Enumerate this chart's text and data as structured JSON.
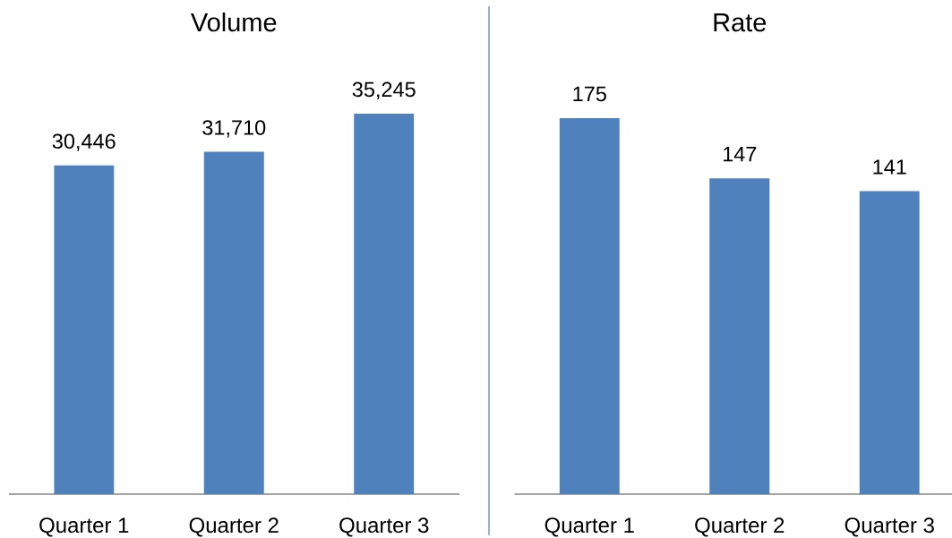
{
  "chart_data": [
    {
      "type": "bar",
      "title": "Volume",
      "categories": [
        "Quarter 1",
        "Quarter 2",
        "Quarter 3"
      ],
      "values": [
        30446,
        31710,
        35245
      ],
      "value_labels": [
        "30,446",
        "31,710",
        "35,245"
      ],
      "color": "#4f81bd",
      "tick_labels": "x"
    },
    {
      "type": "bar",
      "title": "Rate",
      "categories": [
        "Quarter 1",
        "Quarter 2",
        "Quarter 3"
      ],
      "values": [
        175,
        147,
        141
      ],
      "data_labels": true,
      "color": "#4f81bd",
      "tick_labels": "x"
    }
  ]
}
